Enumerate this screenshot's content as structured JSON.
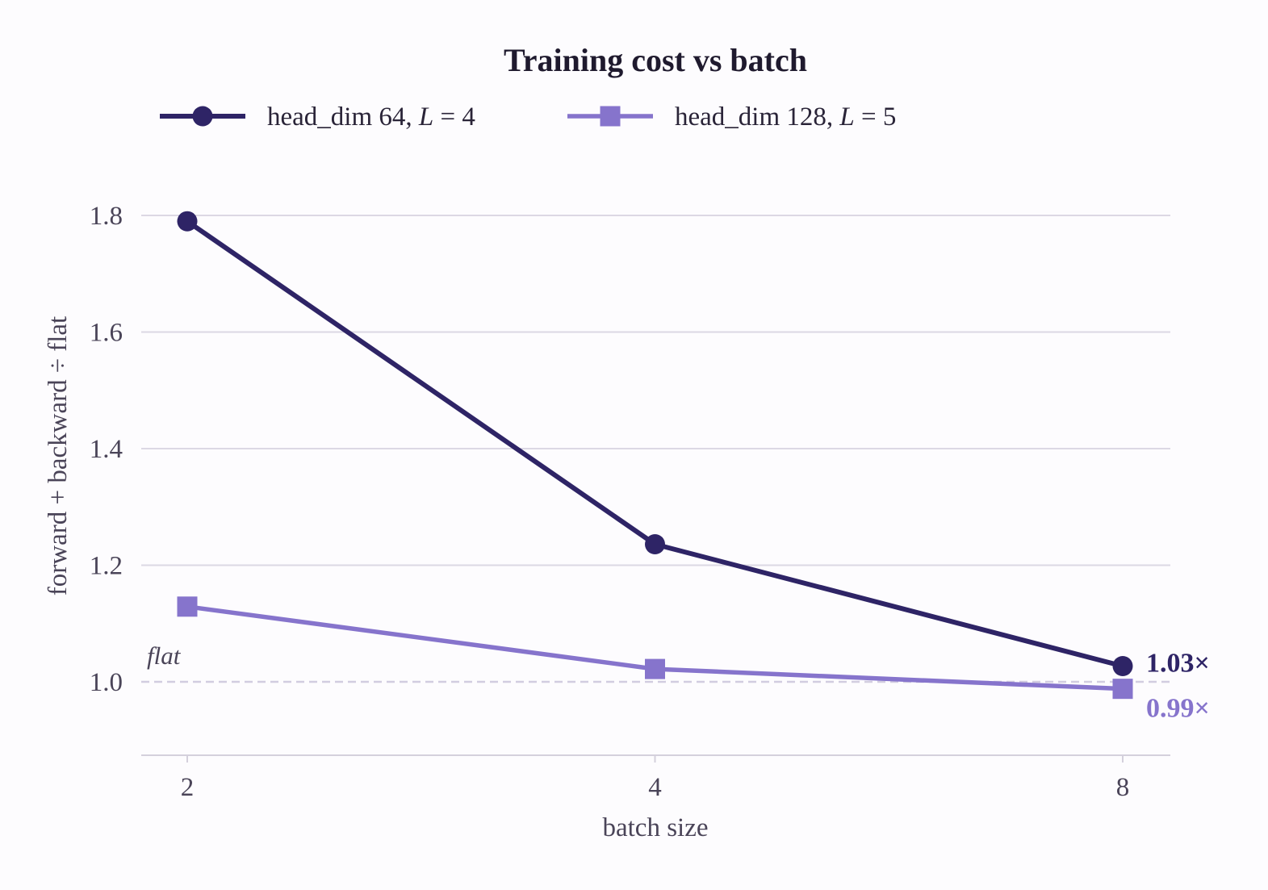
{
  "chart_data": {
    "type": "line",
    "title": "Training cost vs batch",
    "xlabel": "batch size",
    "ylabel": "forward + backward ÷ flat",
    "x": [
      2,
      4,
      8
    ],
    "x_tick_labels": [
      "2",
      "4",
      "8"
    ],
    "x_scale": "log2",
    "ylim": [
      0.87,
      1.87
    ],
    "y_ticks": [
      1.0,
      1.2,
      1.4,
      1.6,
      1.8
    ],
    "y_tick_labels": [
      "1.0",
      "1.2",
      "1.4",
      "1.6",
      "1.8"
    ],
    "grid": "horizontal",
    "legend_position": "top",
    "series": [
      {
        "name_prefix": "head_dim 64, ",
        "name_var": "L",
        "name_eq": " = 4",
        "values": [
          1.79,
          1.236,
          1.027
        ],
        "marker": "circle",
        "color": "#2e2466",
        "end_label": "1.03×"
      },
      {
        "name_prefix": "head_dim 128, ",
        "name_var": "L",
        "name_eq": " = 5",
        "values": [
          1.129,
          1.022,
          0.988
        ],
        "marker": "square",
        "color": "#8674cc",
        "end_label": "0.99×"
      }
    ],
    "reference_line": {
      "y": 1.0,
      "label": "flat",
      "style": "dashed"
    }
  }
}
